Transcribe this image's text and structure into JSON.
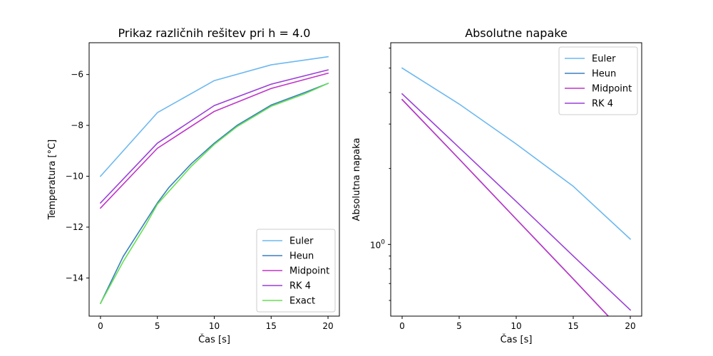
{
  "chart_data": [
    {
      "type": "line",
      "title": "Prikaz različnih rešitev pri h = 4.0",
      "xlabel": "Čas [s]",
      "ylabel": "Temperatura [°C]",
      "x": [
        0,
        5,
        10,
        15,
        20
      ],
      "xlim": [
        -1,
        21
      ],
      "ylim": [
        -15.5,
        -4.75
      ],
      "xticks": [
        0,
        5,
        10,
        15,
        20
      ],
      "yticks": [
        -14,
        -12,
        -10,
        -8,
        -6
      ],
      "yscale": "linear",
      "grid": false,
      "legend_position": "lower-right",
      "series": [
        {
          "name": "Euler",
          "color": "#6cb8f0",
          "x": [
            0,
            5,
            10,
            15,
            20
          ],
          "values": [
            -10.0,
            -7.5,
            -6.24,
            -5.62,
            -5.3
          ]
        },
        {
          "name": "Heun",
          "color": "#3a7fc0",
          "x": [
            0,
            2,
            4,
            5,
            6,
            8,
            10,
            12,
            15,
            18,
            20
          ],
          "values": [
            -15.0,
            -13.15,
            -11.75,
            -11.05,
            -10.45,
            -9.5,
            -8.7,
            -8.0,
            -7.2,
            -6.7,
            -6.35
          ]
        },
        {
          "name": "Midpoint",
          "color": "#c034c8",
          "x": [
            0,
            5,
            10,
            15,
            20
          ],
          "values": [
            -11.25,
            -8.9,
            -7.45,
            -6.55,
            -5.95
          ]
        },
        {
          "name": "RK 4",
          "color": "#9a3fd8",
          "x": [
            0,
            5,
            10,
            15,
            20
          ],
          "values": [
            -11.05,
            -8.7,
            -7.22,
            -6.38,
            -5.82
          ]
        },
        {
          "name": "Exact",
          "color": "#66e050",
          "x": [
            0,
            2,
            4,
            5,
            6,
            8,
            10,
            12,
            15,
            18,
            20
          ],
          "values": [
            -15.0,
            -13.35,
            -11.9,
            -11.1,
            -10.6,
            -9.6,
            -8.75,
            -8.05,
            -7.25,
            -6.75,
            -6.35
          ]
        }
      ]
    },
    {
      "type": "line",
      "title": "Absolutne napake",
      "xlabel": "Čas [s]",
      "ylabel": "Absolutna napaka",
      "x": [
        0,
        5,
        10,
        15,
        20
      ],
      "xlim": [
        -1,
        21
      ],
      "ylim": [
        0.52,
        6.3
      ],
      "xticks": [
        0,
        5,
        10,
        15,
        20
      ],
      "yticks": [
        1
      ],
      "ytick_labels": [
        "10^0"
      ],
      "yscale": "log",
      "grid": false,
      "legend_position": "upper-right",
      "series": [
        {
          "name": "Euler",
          "color": "#6cb8f0",
          "values": [
            5.0,
            3.6,
            2.5,
            1.7,
            1.05
          ]
        },
        {
          "name": "Heun",
          "color": "#3a7fc0",
          "values": [
            3.75,
            2.18,
            1.26,
            0.73,
            0.42
          ]
        },
        {
          "name": "Midpoint",
          "color": "#c034c8",
          "values": [
            3.75,
            2.18,
            1.26,
            0.73,
            0.42
          ]
        },
        {
          "name": "RK 4",
          "color": "#9a3fd8",
          "values": [
            3.95,
            2.42,
            1.48,
            0.9,
            0.55
          ]
        }
      ]
    }
  ]
}
